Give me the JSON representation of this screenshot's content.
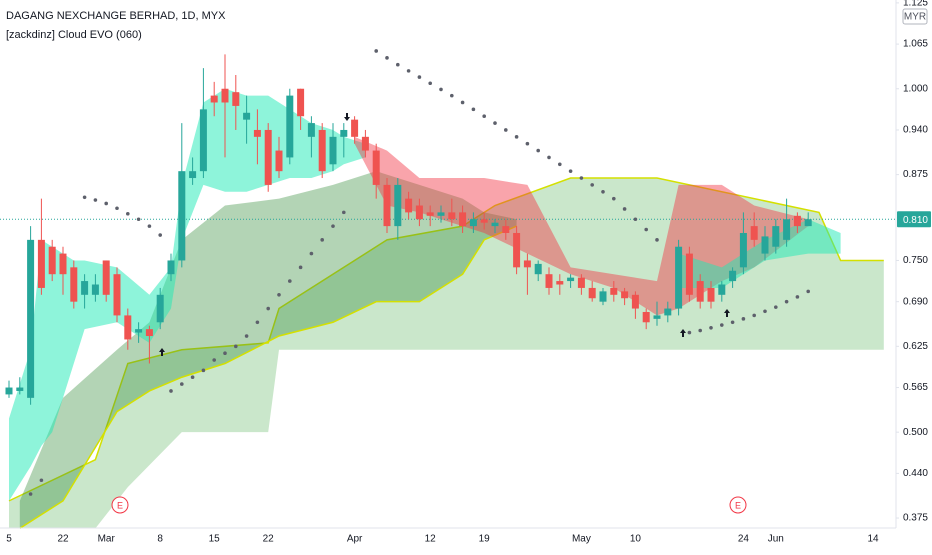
{
  "chart_data": {
    "type": "candlestick",
    "title": "DAGANG NEXCHANGE BERHAD, 1D, MYX",
    "subtitle": "[zackdinz] Cloud EVO (060)",
    "currency": "MYR",
    "event_labels": [
      "E",
      "E"
    ],
    "categories": [
      "5",
      null,
      null,
      null,
      null,
      "22",
      null,
      null,
      null,
      "Mar",
      null,
      null,
      null,
      null,
      "8",
      null,
      null,
      null,
      null,
      "15",
      null,
      null,
      null,
      null,
      "22",
      null,
      null,
      null,
      null,
      null,
      null,
      null,
      "Apr",
      null,
      null,
      null,
      null,
      null,
      null,
      "12",
      null,
      null,
      null,
      null,
      "19",
      null,
      null,
      null,
      null,
      null,
      null,
      null,
      null,
      "May",
      null,
      null,
      null,
      null,
      "10",
      null,
      null,
      null,
      null,
      null,
      null,
      null,
      null,
      null,
      "24",
      null,
      null,
      "Jun",
      null,
      null,
      null,
      null,
      null,
      null,
      null,
      null,
      "14",
      null
    ],
    "open": [
      0.555,
      0.56,
      0.55,
      0.78,
      0.77,
      0.76,
      0.74,
      0.7,
      0.7,
      0.75,
      0.73,
      0.67,
      0.645,
      0.65,
      0.66,
      0.73,
      0.75,
      0.87,
      0.88,
      0.99,
      1.0,
      0.995,
      0.955,
      0.94,
      0.94,
      0.91,
      0.9,
      1.0,
      0.93,
      0.94,
      0.89,
      0.93,
      0.955,
      0.93,
      0.91,
      0.86,
      0.8,
      0.84,
      0.83,
      0.82,
      0.815,
      0.82,
      0.82,
      0.8,
      0.81,
      0.8,
      0.8,
      0.79,
      0.75,
      0.73,
      0.73,
      0.72,
      0.72,
      0.725,
      0.71,
      0.69,
      0.71,
      0.705,
      0.7,
      0.675,
      0.665,
      0.67,
      0.68,
      0.76,
      0.72,
      0.71,
      0.7,
      0.72,
      0.74,
      0.8,
      0.76,
      0.77,
      0.78,
      0.815,
      0.8,
      null,
      null,
      null,
      null,
      null,
      null,
      null
    ],
    "high": [
      0.575,
      0.58,
      0.8,
      0.84,
      0.78,
      0.77,
      0.75,
      0.73,
      0.73,
      0.75,
      0.74,
      0.68,
      0.66,
      0.655,
      0.71,
      0.76,
      0.95,
      0.9,
      1.03,
      1.01,
      1.05,
      1.02,
      0.99,
      0.97,
      0.95,
      0.93,
      1.0,
      1.0,
      0.96,
      0.95,
      0.95,
      0.95,
      0.96,
      0.94,
      0.92,
      0.87,
      0.87,
      0.85,
      0.84,
      0.83,
      0.83,
      0.84,
      0.83,
      0.82,
      0.82,
      0.81,
      0.81,
      0.8,
      0.76,
      0.75,
      0.74,
      0.73,
      0.73,
      0.73,
      0.72,
      0.71,
      0.72,
      0.71,
      0.705,
      0.68,
      0.69,
      0.69,
      0.78,
      0.77,
      0.73,
      0.72,
      0.72,
      0.74,
      0.82,
      0.82,
      0.8,
      0.81,
      0.84,
      0.82,
      0.82,
      null,
      null,
      null,
      null,
      null,
      null,
      null
    ],
    "low": [
      0.55,
      0.555,
      0.54,
      0.7,
      0.72,
      0.7,
      0.68,
      0.68,
      0.69,
      0.69,
      0.66,
      0.62,
      0.63,
      0.6,
      0.65,
      0.72,
      0.74,
      0.86,
      0.87,
      0.96,
      0.9,
      0.94,
      0.92,
      0.89,
      0.85,
      0.87,
      0.89,
      0.94,
      0.9,
      0.87,
      0.88,
      0.9,
      0.92,
      0.9,
      0.84,
      0.79,
      0.78,
      0.81,
      0.8,
      0.8,
      0.805,
      0.8,
      0.79,
      0.79,
      0.795,
      0.79,
      0.78,
      0.73,
      0.7,
      0.72,
      0.7,
      0.7,
      0.71,
      0.7,
      0.69,
      0.685,
      0.69,
      0.685,
      0.665,
      0.65,
      0.655,
      0.66,
      0.67,
      0.69,
      0.68,
      0.68,
      0.69,
      0.71,
      0.73,
      0.77,
      0.75,
      0.76,
      0.77,
      0.79,
      0.8,
      null,
      null,
      null,
      null,
      null,
      null,
      null
    ],
    "close": [
      0.565,
      0.565,
      0.78,
      0.71,
      0.73,
      0.73,
      0.69,
      0.72,
      0.715,
      0.7,
      0.67,
      0.635,
      0.65,
      0.64,
      0.7,
      0.75,
      0.88,
      0.88,
      0.97,
      0.98,
      0.98,
      0.975,
      0.965,
      0.93,
      0.86,
      0.88,
      0.99,
      0.96,
      0.95,
      0.88,
      0.93,
      0.94,
      0.93,
      0.91,
      0.86,
      0.8,
      0.86,
      0.82,
      0.81,
      0.815,
      0.82,
      0.81,
      0.8,
      0.81,
      0.805,
      0.805,
      0.79,
      0.74,
      0.74,
      0.745,
      0.71,
      0.715,
      0.725,
      0.71,
      0.695,
      0.705,
      0.7,
      0.695,
      0.68,
      0.66,
      0.67,
      0.68,
      0.77,
      0.7,
      0.69,
      0.69,
      0.715,
      0.735,
      0.79,
      0.78,
      0.785,
      0.8,
      0.81,
      0.8,
      0.81,
      null,
      null,
      null,
      null,
      null,
      null,
      null
    ],
    "up_color": "#26a69a",
    "down_color": "#ef5350",
    "bands": [
      {
        "color": "rgba(102,187,106,0.35)",
        "edge": "upper",
        "edge_color": "#d4e000",
        "x": [
          0,
          8,
          11,
          16,
          24,
          25,
          35,
          42,
          45,
          52,
          60,
          75,
          77,
          81
        ],
        "upper": [
          0.4,
          0.46,
          0.6,
          0.62,
          0.63,
          0.68,
          0.78,
          0.8,
          0.83,
          0.87,
          0.87,
          0.82,
          0.75,
          0.75
        ],
        "lower": [
          0.36,
          0.36,
          0.42,
          0.5,
          0.5,
          0.62,
          0.62,
          0.62,
          0.62,
          0.62,
          0.62,
          0.62,
          0.62,
          0.62
        ]
      },
      {
        "color": "rgba(56,142,60,0.38)",
        "edge": "lower",
        "edge_color": "#d4e000",
        "x": [
          1,
          5,
          10,
          13,
          16,
          20,
          25,
          30,
          34,
          38,
          42,
          44,
          47
        ],
        "upper": [
          0.4,
          0.55,
          0.62,
          0.66,
          0.78,
          0.83,
          0.84,
          0.86,
          0.88,
          0.86,
          0.84,
          0.82,
          0.81
        ],
        "lower": [
          0.36,
          0.4,
          0.53,
          0.56,
          0.58,
          0.6,
          0.64,
          0.66,
          0.69,
          0.69,
          0.73,
          0.78,
          0.8
        ]
      },
      {
        "color": "rgba(29,233,182,0.5)",
        "x": [
          0,
          2,
          3,
          4,
          6,
          7,
          10,
          13,
          15,
          16,
          18,
          20,
          22,
          24,
          26,
          28,
          30,
          31,
          33
        ],
        "upper": [
          0.52,
          0.62,
          0.78,
          0.77,
          0.75,
          0.75,
          0.74,
          0.7,
          0.74,
          0.86,
          0.98,
          1.0,
          0.99,
          0.99,
          0.97,
          0.95,
          0.94,
          0.93,
          0.92
        ],
        "lower": [
          0.4,
          0.45,
          0.48,
          0.5,
          0.6,
          0.65,
          0.66,
          0.63,
          0.68,
          0.78,
          0.86,
          0.85,
          0.85,
          0.86,
          0.87,
          0.87,
          0.88,
          0.89,
          0.9
        ]
      },
      {
        "color": "rgba(242,54,69,0.45)",
        "x": [
          32,
          35,
          38,
          44,
          48,
          52,
          56,
          60,
          62,
          66,
          69,
          74
        ],
        "upper": [
          0.93,
          0.91,
          0.87,
          0.87,
          0.86,
          0.74,
          0.73,
          0.72,
          0.86,
          0.86,
          0.83,
          0.81
        ],
        "lower": [
          0.92,
          0.83,
          0.82,
          0.79,
          0.76,
          0.73,
          0.71,
          0.67,
          0.68,
          0.72,
          0.74,
          0.8
        ]
      },
      {
        "color": "rgba(29,233,182,0.5)",
        "x": [
          62,
          66,
          70,
          74,
          77
        ],
        "upper": [
          0.76,
          0.74,
          0.78,
          0.81,
          0.79
        ],
        "lower": [
          0.71,
          0.71,
          0.75,
          0.76,
          0.76
        ]
      }
    ],
    "sar": {
      "color": "#5d606b",
      "x": [
        2,
        3,
        7,
        8,
        9,
        10,
        11,
        12,
        13,
        14,
        15,
        16,
        17,
        18,
        19,
        20,
        21,
        22,
        23,
        24,
        25,
        26,
        27,
        28,
        29,
        30,
        31,
        34,
        35,
        36,
        37,
        38,
        39,
        40,
        41,
        42,
        43,
        44,
        45,
        46,
        47,
        48,
        49,
        50,
        51,
        52,
        53,
        54,
        55,
        56,
        57,
        58,
        59,
        60,
        63,
        64,
        65,
        66,
        67,
        68,
        69,
        70,
        71,
        72,
        73,
        74
      ],
      "values": [
        0.41,
        0.43,
        0.842,
        0.838,
        0.833,
        0.826,
        0.818,
        0.81,
        0.8,
        0.787,
        0.56,
        0.57,
        0.58,
        0.59,
        0.605,
        0.615,
        0.625,
        0.64,
        0.66,
        0.68,
        0.7,
        0.72,
        0.74,
        0.76,
        0.78,
        0.8,
        0.82,
        1.055,
        1.045,
        1.035,
        1.026,
        1.017,
        1.008,
        0.999,
        0.99,
        0.98,
        0.97,
        0.96,
        0.95,
        0.94,
        0.93,
        0.92,
        0.91,
        0.9,
        0.89,
        0.88,
        0.87,
        0.86,
        0.85,
        0.84,
        0.825,
        0.81,
        0.795,
        0.78,
        0.645,
        0.648,
        0.652,
        0.656,
        0.66,
        0.665,
        0.67,
        0.676,
        0.682,
        0.69,
        0.697,
        0.705
      ]
    },
    "last_price": {
      "value": 0.81,
      "label": "0.810",
      "color": "#26a69a"
    },
    "ylim": [
      0.3605,
      1.1292
    ],
    "yticks": [
      1.125,
      1.065,
      {
        "value": 1,
        "label": "1.000"
      },
      {
        "value": 0.94,
        "label": "0.940"
      },
      0.875,
      {
        "value": 0.75,
        "label": "0.750"
      },
      {
        "value": 0.69,
        "label": "0.690"
      },
      0.625,
      0.565,
      {
        "value": 0.5,
        "label": "0.500"
      },
      {
        "value": 0.44,
        "label": "0.440"
      },
      0.375
    ],
    "grid": false
  }
}
